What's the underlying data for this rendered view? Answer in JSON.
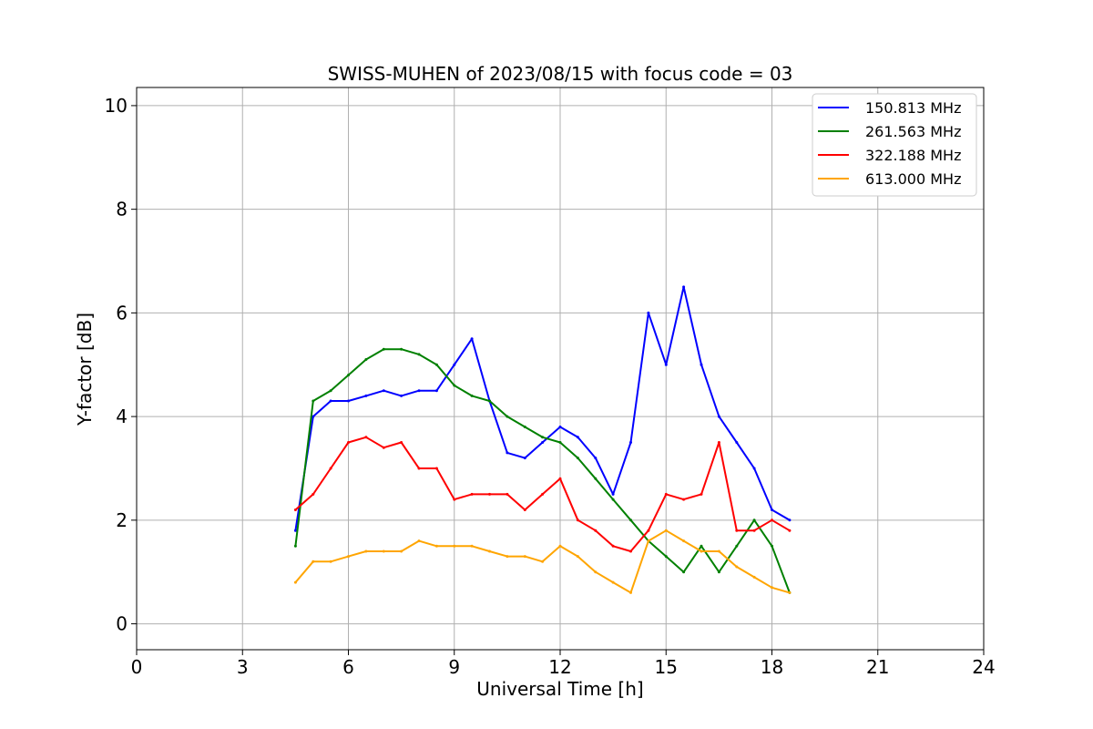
{
  "chart_data": {
    "type": "line",
    "title": "SWISS-MUHEN of 2023/08/15 with focus code = 03",
    "xlabel": "Universal Time [h]",
    "ylabel": "Y-factor [dB]",
    "xlim": [
      0,
      24
    ],
    "ylim": [
      -0.5,
      10.35
    ],
    "x_ticks": [
      0,
      3,
      6,
      9,
      12,
      15,
      18,
      21,
      24
    ],
    "y_ticks": [
      0,
      2,
      4,
      6,
      8,
      10
    ],
    "x_tick_labels": [
      "0",
      "3",
      "6",
      "9",
      "12",
      "15",
      "18",
      "21",
      "24"
    ],
    "y_tick_labels": [
      "0",
      "2",
      "4",
      "6",
      "8",
      "10"
    ],
    "grid": true,
    "legend_position": "top-right",
    "x": [
      4.5,
      5.0,
      5.5,
      6.0,
      6.5,
      7.0,
      7.5,
      8.0,
      8.5,
      9.0,
      9.5,
      10.0,
      10.5,
      11.0,
      11.5,
      12.0,
      12.5,
      13.0,
      13.5,
      14.0,
      14.5,
      15.0,
      15.5,
      16.0,
      16.5,
      17.0,
      17.5,
      18.0,
      18.5
    ],
    "series": [
      {
        "name": "150.813 MHz",
        "color": "#0000ff",
        "values": [
          1.8,
          4.0,
          4.3,
          4.3,
          4.4,
          4.5,
          4.4,
          4.5,
          4.5,
          5.0,
          5.5,
          4.3,
          3.3,
          3.2,
          3.5,
          3.8,
          3.6,
          3.2,
          2.5,
          3.5,
          6.0,
          5.0,
          6.5,
          5.0,
          4.0,
          3.5,
          3.0,
          2.2,
          2.0
        ]
      },
      {
        "name": "261.563 MHz",
        "color": "#008000",
        "values": [
          1.5,
          4.3,
          4.5,
          4.8,
          5.1,
          5.3,
          5.3,
          5.2,
          5.0,
          4.6,
          4.4,
          4.3,
          4.0,
          3.8,
          3.6,
          3.5,
          3.2,
          2.8,
          2.4,
          2.0,
          1.6,
          1.3,
          1.0,
          1.5,
          1.0,
          1.5,
          2.0,
          1.5,
          0.6
        ]
      },
      {
        "name": "322.188 MHz",
        "color": "#ff0000",
        "values": [
          2.2,
          2.5,
          3.0,
          3.5,
          3.6,
          3.4,
          3.5,
          3.0,
          3.0,
          2.4,
          2.5,
          2.5,
          2.5,
          2.2,
          2.5,
          2.8,
          2.0,
          1.8,
          1.5,
          1.4,
          1.8,
          2.5,
          2.4,
          2.5,
          3.5,
          1.8,
          1.8,
          2.0,
          1.8
        ]
      },
      {
        "name": "613.000 MHz",
        "color": "#ffa500",
        "values": [
          0.8,
          1.2,
          1.2,
          1.3,
          1.4,
          1.4,
          1.4,
          1.6,
          1.5,
          1.5,
          1.5,
          1.4,
          1.3,
          1.3,
          1.2,
          1.5,
          1.3,
          1.0,
          0.8,
          0.6,
          1.6,
          1.8,
          1.6,
          1.4,
          1.4,
          1.1,
          0.9,
          0.7,
          0.6
        ]
      }
    ]
  }
}
